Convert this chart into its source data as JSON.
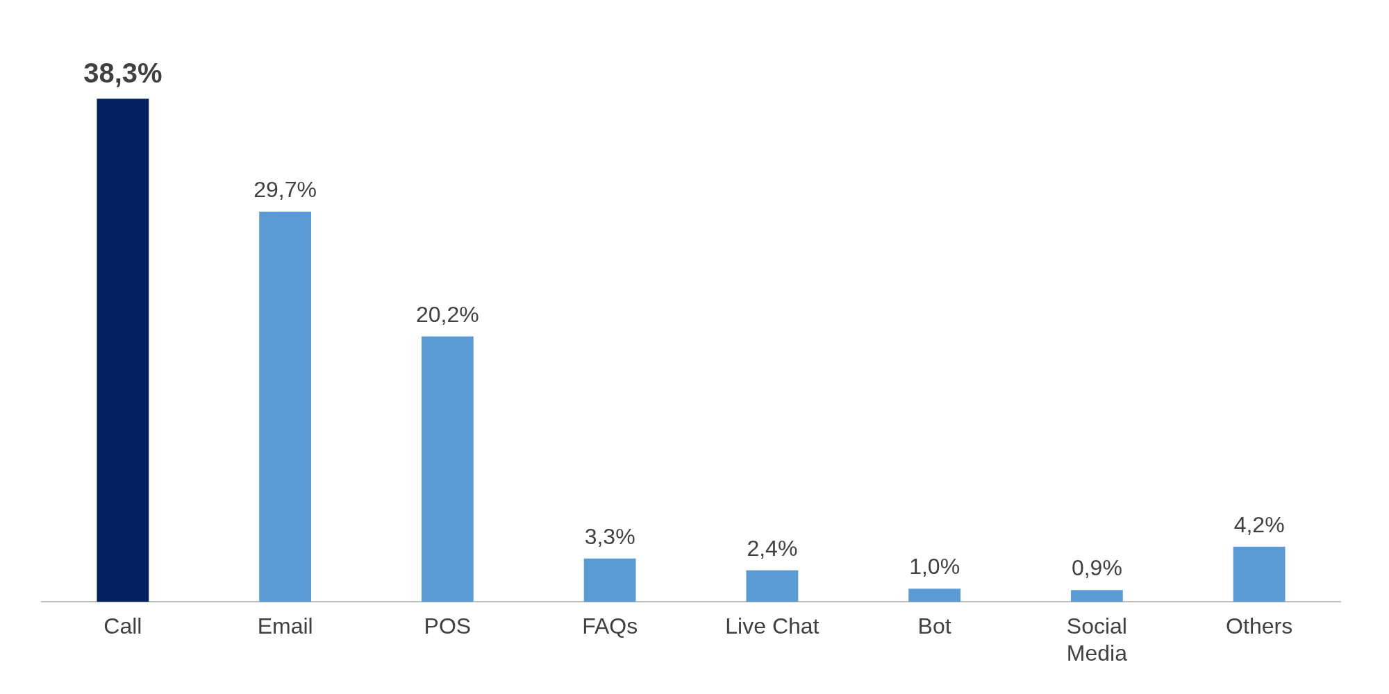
{
  "chart_data": {
    "type": "bar",
    "categories": [
      "Call",
      "Email",
      "POS",
      "FAQs",
      "Live Chat",
      "Bot",
      "Social Media",
      "Others"
    ],
    "values": [
      38.3,
      29.7,
      20.2,
      3.3,
      2.4,
      1.0,
      0.9,
      4.2
    ],
    "colors": [
      "#03205f",
      "#5b9bd5",
      "#5b9bd5",
      "#5b9bd5",
      "#5b9bd5",
      "#5b9bd5",
      "#5b9bd5",
      "#5b9bd5"
    ],
    "value_labels": [
      "38,3%",
      "29,7%",
      "20,2%",
      "3,3%",
      "2,4%",
      "1,0%",
      "0,9%",
      "4,2%"
    ],
    "grid": false,
    "legend": false
  }
}
